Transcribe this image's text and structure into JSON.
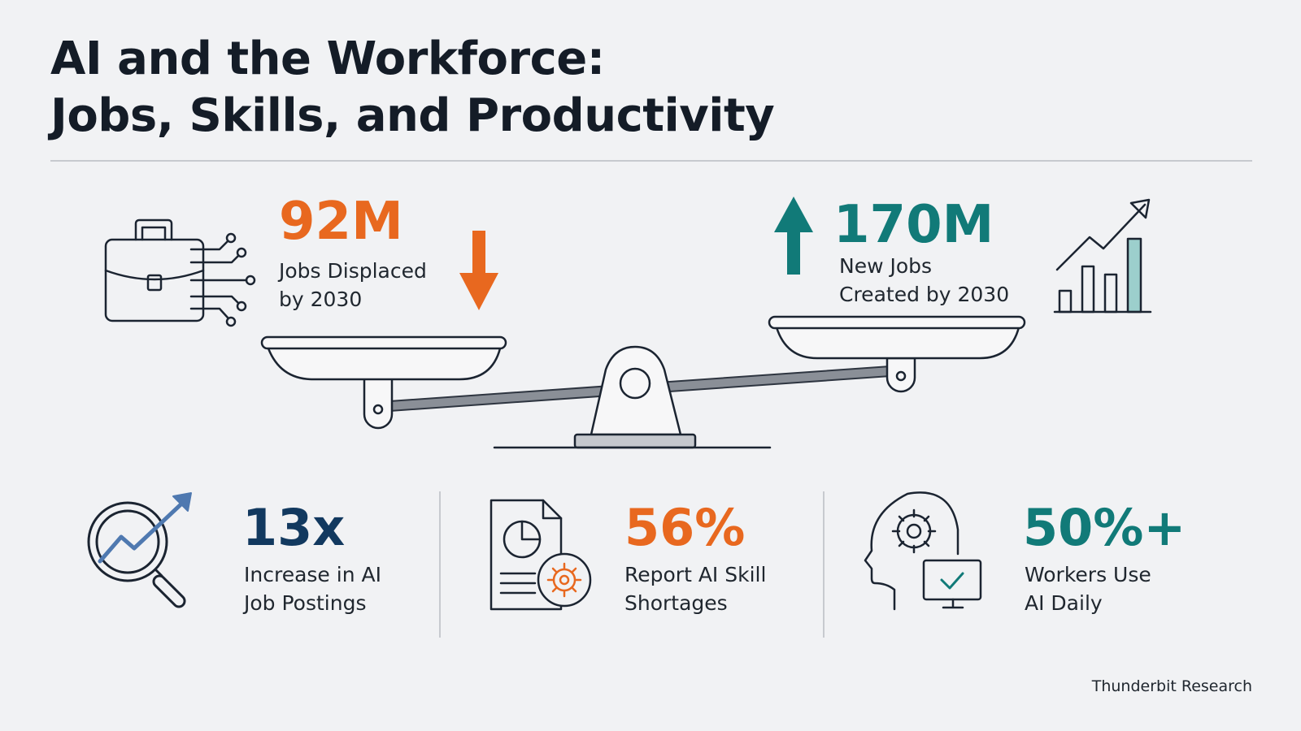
{
  "title": {
    "line1": "AI and the Workforce:",
    "line2": "Jobs, Skills, and Productivity"
  },
  "balance": {
    "left": {
      "value": "92M",
      "label": "Jobs Displaced\nby 2030",
      "color": "#e8681f",
      "icon": "briefcase-circuit-icon",
      "arrow": "arrow-down-icon"
    },
    "right": {
      "value": "170M",
      "label": "New Jobs\nCreated by 2030",
      "color": "#117a78",
      "icon": "growth-chart-icon",
      "arrow": "arrow-up-icon"
    }
  },
  "stats": [
    {
      "value": "13x",
      "label": "Increase in AI\nJob Postings",
      "color": "#12395f",
      "icon": "magnifier-trend-icon"
    },
    {
      "value": "56%",
      "label": "Report AI Skill\nShortages",
      "color": "#e8681f",
      "icon": "document-gear-icon"
    },
    {
      "value": "50%+",
      "label": "Workers Use\nAI Daily",
      "color": "#117a78",
      "icon": "head-gear-monitor-icon"
    }
  ],
  "source": "Thunderbit Research"
}
